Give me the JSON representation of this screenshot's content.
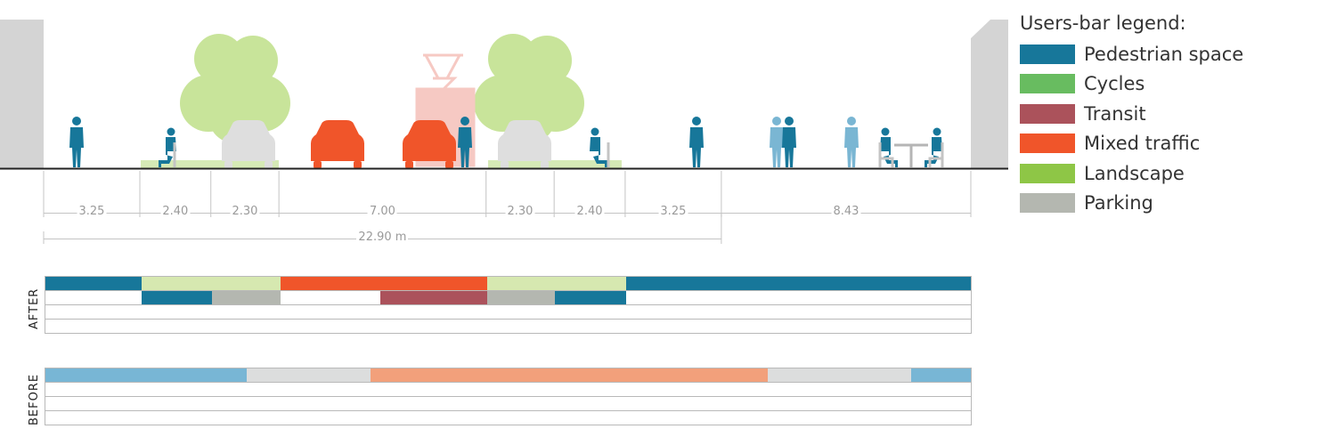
{
  "legend": {
    "title": "Users-bar legend:",
    "items": [
      {
        "key": "pedestrian",
        "label": "Pedestrian space",
        "color": "#17779a"
      },
      {
        "key": "cycles",
        "label": "Cycles",
        "color": "#68bc60"
      },
      {
        "key": "transit",
        "label": "Transit",
        "color": "#ab525b"
      },
      {
        "key": "mixed",
        "label": "Mixed traffic",
        "color": "#f0552a"
      },
      {
        "key": "landscape",
        "label": "Landscape",
        "color": "#8ec646"
      },
      {
        "key": "parking",
        "label": "Parking",
        "color": "#b4b7b0"
      }
    ]
  },
  "colors": {
    "landscape_bar": "#d6e8b0",
    "before_pedestrian": "#78b6d5",
    "before_parking": "#dcdddd",
    "before_mixed": "#f2a07b",
    "tree": "#c8e49a",
    "figure_dark": "#17779a",
    "figure_light": "#7ab6d3",
    "car_red": "#f0552a",
    "car_grey": "#dedede",
    "tram": "#f6c9c3",
    "building": "#d4d4d4"
  },
  "section": {
    "dimensions": [
      {
        "label": "3.25",
        "value": 3.25
      },
      {
        "label": "2.40",
        "value": 2.4
      },
      {
        "label": "2.30",
        "value": 2.3
      },
      {
        "label": "7.00",
        "value": 7.0
      },
      {
        "label": "2.30",
        "value": 2.3
      },
      {
        "label": "2.40",
        "value": 2.4
      },
      {
        "label": "3.25",
        "value": 3.25
      },
      {
        "label": "8.43",
        "value": 8.43
      }
    ],
    "total": {
      "label": "22.90 m",
      "value": 22.9
    }
  },
  "bars": {
    "after": {
      "label": "AFTER",
      "rows": [
        [
          {
            "type": "pedestrian",
            "from": 0,
            "to": 3.25
          },
          {
            "type": "landscape",
            "from": 3.25,
            "to": 7.95
          },
          {
            "type": "mixed",
            "from": 7.95,
            "to": 14.95
          },
          {
            "type": "landscape",
            "from": 14.95,
            "to": 19.65
          },
          {
            "type": "pedestrian",
            "from": 19.65,
            "to": 31.33
          }
        ],
        [
          {
            "type": "pedestrian",
            "from": 3.25,
            "to": 5.65
          },
          {
            "type": "parking",
            "from": 5.65,
            "to": 7.95
          },
          {
            "type": "transit",
            "from": 11.35,
            "to": 14.95
          },
          {
            "type": "parking",
            "from": 14.95,
            "to": 17.25
          },
          {
            "type": "pedestrian",
            "from": 17.25,
            "to": 19.65
          }
        ],
        [],
        []
      ]
    },
    "before": {
      "label": "BEFORE",
      "rows": [
        [
          {
            "type": "before_pedestrian",
            "from": 0,
            "to": 6.8
          },
          {
            "type": "before_parking",
            "from": 6.8,
            "to": 11.0
          },
          {
            "type": "before_mixed",
            "from": 11.0,
            "to": 24.45
          },
          {
            "type": "before_parking",
            "from": 24.45,
            "to": 29.3
          },
          {
            "type": "before_pedestrian",
            "from": 29.3,
            "to": 31.33
          }
        ],
        [],
        [],
        []
      ]
    }
  }
}
